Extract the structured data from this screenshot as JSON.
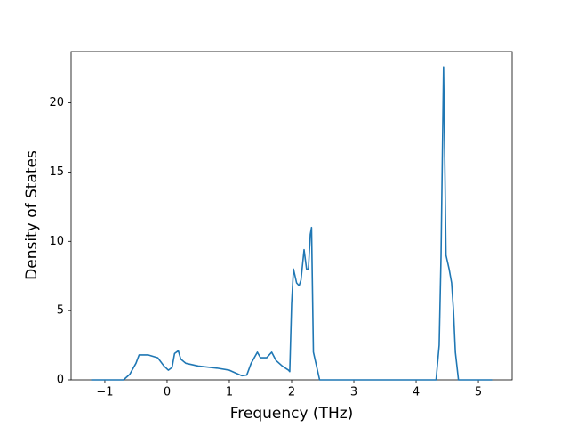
{
  "chart_data": {
    "type": "line",
    "xlabel": "Frequency (THz)",
    "ylabel": "Density of States",
    "x": [
      -1.22,
      -0.7,
      -0.6,
      -0.5,
      -0.45,
      -0.3,
      -0.15,
      -0.05,
      0.02,
      0.08,
      0.12,
      0.18,
      0.22,
      0.3,
      0.5,
      0.8,
      1.0,
      1.1,
      1.2,
      1.28,
      1.35,
      1.45,
      1.5,
      1.6,
      1.68,
      1.75,
      1.85,
      1.95,
      1.97,
      2.0,
      2.03,
      2.08,
      2.12,
      2.15,
      2.2,
      2.24,
      2.27,
      2.3,
      2.32,
      2.35,
      2.4,
      2.45,
      4.32,
      4.37,
      4.4,
      4.44,
      4.48,
      4.53,
      4.57,
      4.6,
      4.63,
      4.68,
      5.22
    ],
    "series": [
      {
        "color": "#1f77b4",
        "values": [
          0,
          0,
          0.4,
          1.2,
          1.8,
          1.8,
          1.6,
          1.0,
          0.7,
          0.9,
          1.9,
          2.1,
          1.5,
          1.2,
          1.0,
          0.85,
          0.7,
          0.5,
          0.3,
          0.35,
          1.2,
          2.0,
          1.6,
          1.6,
          2.0,
          1.4,
          1.0,
          0.7,
          0.6,
          5.5,
          8.0,
          7.0,
          6.8,
          7.2,
          9.4,
          8.0,
          8.0,
          10.5,
          11.0,
          2.0,
          1.0,
          0,
          0,
          2.5,
          9,
          22.6,
          9,
          8,
          7,
          5,
          2,
          0,
          0
        ]
      }
    ],
    "xlim": [
      -1.542,
      5.542
    ],
    "xticks": [
      {
        "value": -1,
        "label": "−1"
      },
      0,
      1,
      2,
      3,
      4,
      5
    ],
    "ylim": [
      0,
      23.7
    ],
    "yticks": [
      0,
      5,
      10,
      15,
      20
    ],
    "grid": false
  }
}
